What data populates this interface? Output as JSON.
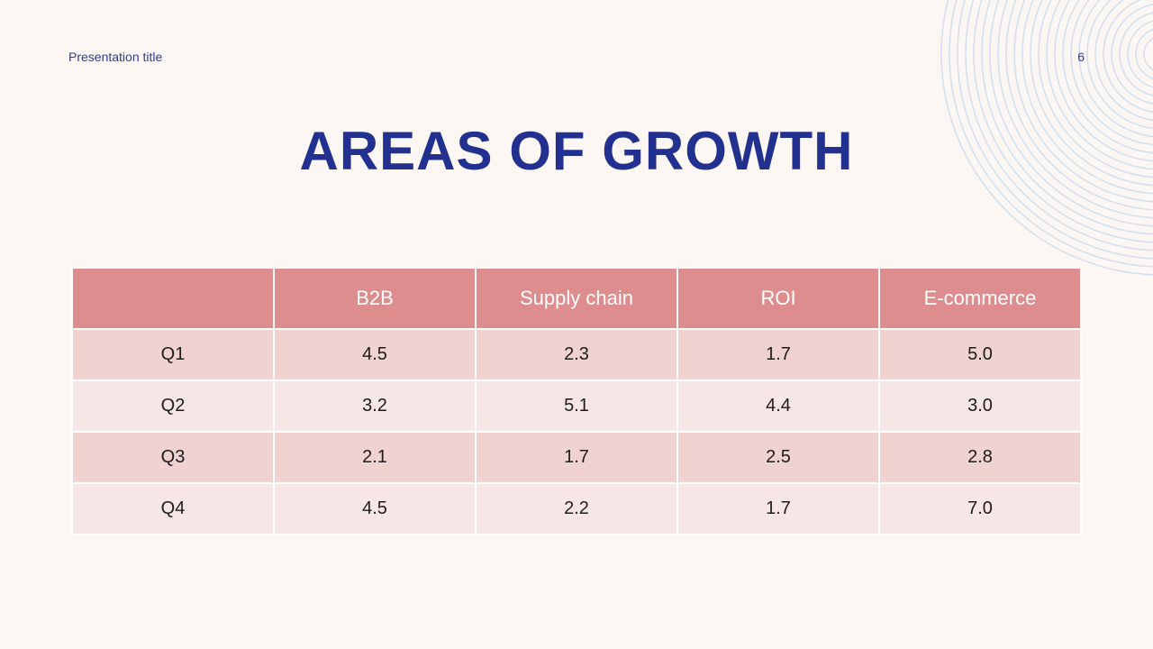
{
  "header": {
    "presentation_title": "Presentation title",
    "slide_number": "6"
  },
  "slide": {
    "title": "AREAS OF GROWTH"
  },
  "table": {
    "columns": [
      "",
      "B2B",
      "Supply chain",
      "ROI",
      "E-commerce"
    ],
    "rows": [
      [
        "Q1",
        "4.5",
        "2.3",
        "1.7",
        "5.0"
      ],
      [
        "Q2",
        "3.2",
        "5.1",
        "4.4",
        "3.0"
      ],
      [
        "Q3",
        "2.1",
        "1.7",
        "2.5",
        "2.8"
      ],
      [
        "Q4",
        "4.5",
        "2.2",
        "1.7",
        "7.0"
      ]
    ]
  },
  "colors": {
    "background": "#fcf7f3",
    "title": "#22308f",
    "header_fill": "#dd8d8d",
    "row_fill_odd": "#f0d3d1",
    "row_fill_even": "#f6e6e5",
    "decorative_rings": "#cfe0f3"
  }
}
